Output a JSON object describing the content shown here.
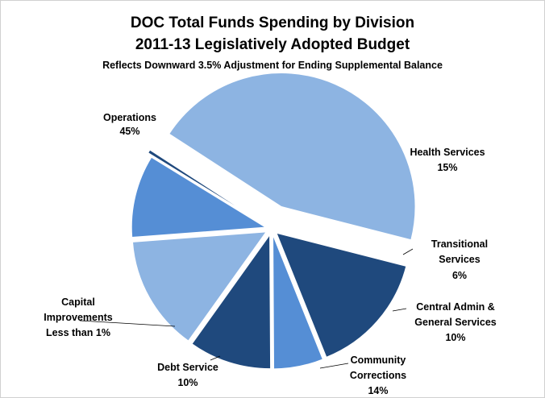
{
  "chart_data": {
    "type": "pie",
    "title": "DOC Total Funds Spending by Division",
    "subtitle": "2011-13 Legislatively Adopted Budget",
    "note": "Reflects Downward 3.5% Adjustment for Ending Supplemental Balance",
    "slices": [
      {
        "name": "Operations",
        "value": 45,
        "label_pct": "45%",
        "color": "#8DB4E2"
      },
      {
        "name": "Health Services",
        "value": 15,
        "label_pct": "15%",
        "color": "#1F497D"
      },
      {
        "name": "Transitional Services",
        "value": 6,
        "label_pct": "6%",
        "color": "#558ED5"
      },
      {
        "name": "Central Admin & General Services",
        "value": 10,
        "label_pct": "10%",
        "color": "#1F497D"
      },
      {
        "name": "Community Corrections",
        "value": 14,
        "label_pct": "14%",
        "color": "#8DB4E2"
      },
      {
        "name": "Debt Service",
        "value": 10,
        "label_pct": "10%",
        "color": "#558ED5"
      },
      {
        "name": "Capital Improvements",
        "value": 0.4,
        "label_pct": "Less than 1%",
        "color": "#1F497D"
      }
    ],
    "labels": {
      "operations": [
        "Operations",
        "45%"
      ],
      "health": [
        "Health Services",
        "15%"
      ],
      "transitional": [
        "Transitional",
        "Services",
        "6%"
      ],
      "central": [
        "Central Admin &",
        "General Services",
        "10%"
      ],
      "community": [
        "Community",
        "Corrections",
        "14%"
      ],
      "debt": [
        "Debt Service",
        "10%"
      ],
      "capital": [
        "Capital",
        "Improvements",
        "Less than 1%"
      ]
    }
  }
}
